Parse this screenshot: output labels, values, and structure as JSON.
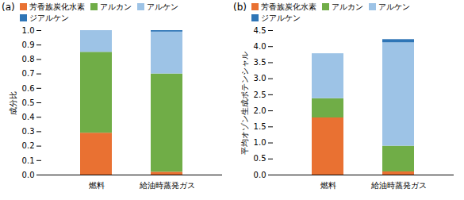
{
  "chart_data": [
    {
      "type": "bar",
      "title": "(a)",
      "ylabel": "成分比",
      "stacked": true,
      "grid": false,
      "legend": "top",
      "categories": [
        "燃料",
        "給油時蒸発ガス"
      ],
      "series": [
        {
          "name": "芳香族炭化水素",
          "color": "#e97132",
          "values": [
            0.29,
            0.02
          ]
        },
        {
          "name": "アルカン",
          "color": "#70ad47",
          "values": [
            0.56,
            0.68
          ]
        },
        {
          "name": "アルケン",
          "color": "#9dc3e6",
          "values": [
            0.15,
            0.29
          ]
        },
        {
          "name": "ジアルケン",
          "color": "#2e75b6",
          "values": [
            0.0,
            0.01
          ]
        }
      ],
      "ylim": [
        0,
        1.0
      ],
      "yticks": [
        {
          "value": 0.0,
          "label": "0.0"
        },
        0.1,
        0.2,
        0.3,
        0.4,
        0.5,
        0.6,
        0.7,
        0.8,
        0.9,
        {
          "value": 1.0,
          "label": "1.0"
        }
      ]
    },
    {
      "type": "bar",
      "title": "(b)",
      "ylabel": "平均オゾン生成ポテンシャル",
      "stacked": true,
      "grid": false,
      "legend": "top",
      "categories": [
        "燃料",
        "給油時蒸発ガス"
      ],
      "series": [
        {
          "name": "芳香族炭化水素",
          "color": "#e97132",
          "values": [
            1.78,
            0.1
          ]
        },
        {
          "name": "アルカン",
          "color": "#70ad47",
          "values": [
            0.6,
            0.8
          ]
        },
        {
          "name": "アルケン",
          "color": "#9dc3e6",
          "values": [
            1.4,
            3.22
          ]
        },
        {
          "name": "ジアルケン",
          "color": "#2e75b6",
          "values": [
            0.0,
            0.1
          ]
        }
      ],
      "ylim": [
        0,
        4.5
      ],
      "yticks": [
        {
          "value": 0.0,
          "label": "0.0"
        },
        0.5,
        {
          "value": 1.0,
          "label": "1.0"
        },
        1.5,
        {
          "value": 2.0,
          "label": "2.0"
        },
        2.5,
        {
          "value": 3.0,
          "label": "3.0"
        },
        3.5,
        {
          "value": 4.0,
          "label": "4.0"
        },
        4.5
      ]
    }
  ]
}
